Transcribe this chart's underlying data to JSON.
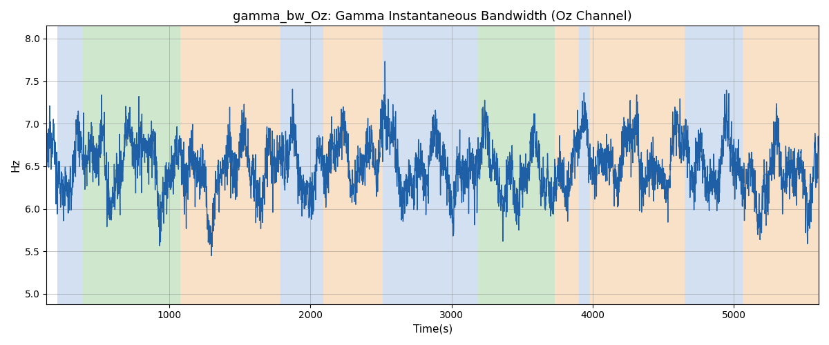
{
  "title": "gamma_bw_Oz: Gamma Instantaneous Bandwidth (Oz Channel)",
  "xlabel": "Time(s)",
  "ylabel": "Hz",
  "ylim": [
    4.88,
    8.15
  ],
  "xlim": [
    130,
    5600
  ],
  "yticks": [
    5.0,
    5.5,
    6.0,
    6.5,
    7.0,
    7.5,
    8.0
  ],
  "xticks": [
    1000,
    2000,
    3000,
    4000,
    5000
  ],
  "line_color": "#1f5fa6",
  "line_width": 1.0,
  "bg_bands": [
    {
      "xmin": 205,
      "xmax": 390,
      "color": "#adc8e8",
      "alpha": 0.55
    },
    {
      "xmin": 390,
      "xmax": 1080,
      "color": "#a8d5a2",
      "alpha": 0.55
    },
    {
      "xmin": 1080,
      "xmax": 1290,
      "color": "#f5c99a",
      "alpha": 0.55
    },
    {
      "xmin": 1290,
      "xmax": 1790,
      "color": "#f5c99a",
      "alpha": 0.55
    },
    {
      "xmin": 1790,
      "xmax": 2090,
      "color": "#adc8e8",
      "alpha": 0.55
    },
    {
      "xmin": 2090,
      "xmax": 2510,
      "color": "#f5c99a",
      "alpha": 0.55
    },
    {
      "xmin": 2510,
      "xmax": 3030,
      "color": "#adc8e8",
      "alpha": 0.55
    },
    {
      "xmin": 3030,
      "xmax": 3100,
      "color": "#adc8e8",
      "alpha": 0.55
    },
    {
      "xmin": 3100,
      "xmax": 3180,
      "color": "#adc8e8",
      "alpha": 0.55
    },
    {
      "xmin": 3180,
      "xmax": 3730,
      "color": "#a8d5a2",
      "alpha": 0.55
    },
    {
      "xmin": 3730,
      "xmax": 3900,
      "color": "#f5c99a",
      "alpha": 0.55
    },
    {
      "xmin": 3900,
      "xmax": 3980,
      "color": "#adc8e8",
      "alpha": 0.55
    },
    {
      "xmin": 3980,
      "xmax": 4650,
      "color": "#f5c99a",
      "alpha": 0.55
    },
    {
      "xmin": 4650,
      "xmax": 5060,
      "color": "#adc8e8",
      "alpha": 0.55
    },
    {
      "xmin": 5060,
      "xmax": 5600,
      "color": "#f5c99a",
      "alpha": 0.55
    }
  ],
  "seed": 12345,
  "title_fontsize": 13,
  "tick_fontsize": 10,
  "label_fontsize": 11
}
